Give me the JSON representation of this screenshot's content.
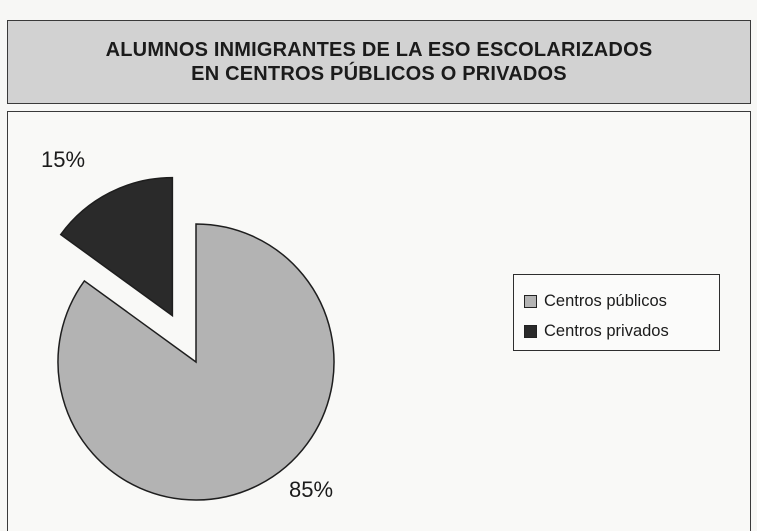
{
  "chart_data": {
    "type": "pie",
    "title_lines": [
      "ALUMNOS INMIGRANTES DE LA ESO ESCOLARIZADOS",
      "EN CENTROS PÚBLICOS O PRIVADOS"
    ],
    "slices": [
      {
        "label": "Centros públicos",
        "value": 85,
        "value_label": "85%",
        "color": "#b3b3b3"
      },
      {
        "label": "Centros privados",
        "value": 15,
        "value_label": "15%",
        "color": "#2a2a2a"
      }
    ],
    "exploded": true,
    "legend_position": "right"
  }
}
